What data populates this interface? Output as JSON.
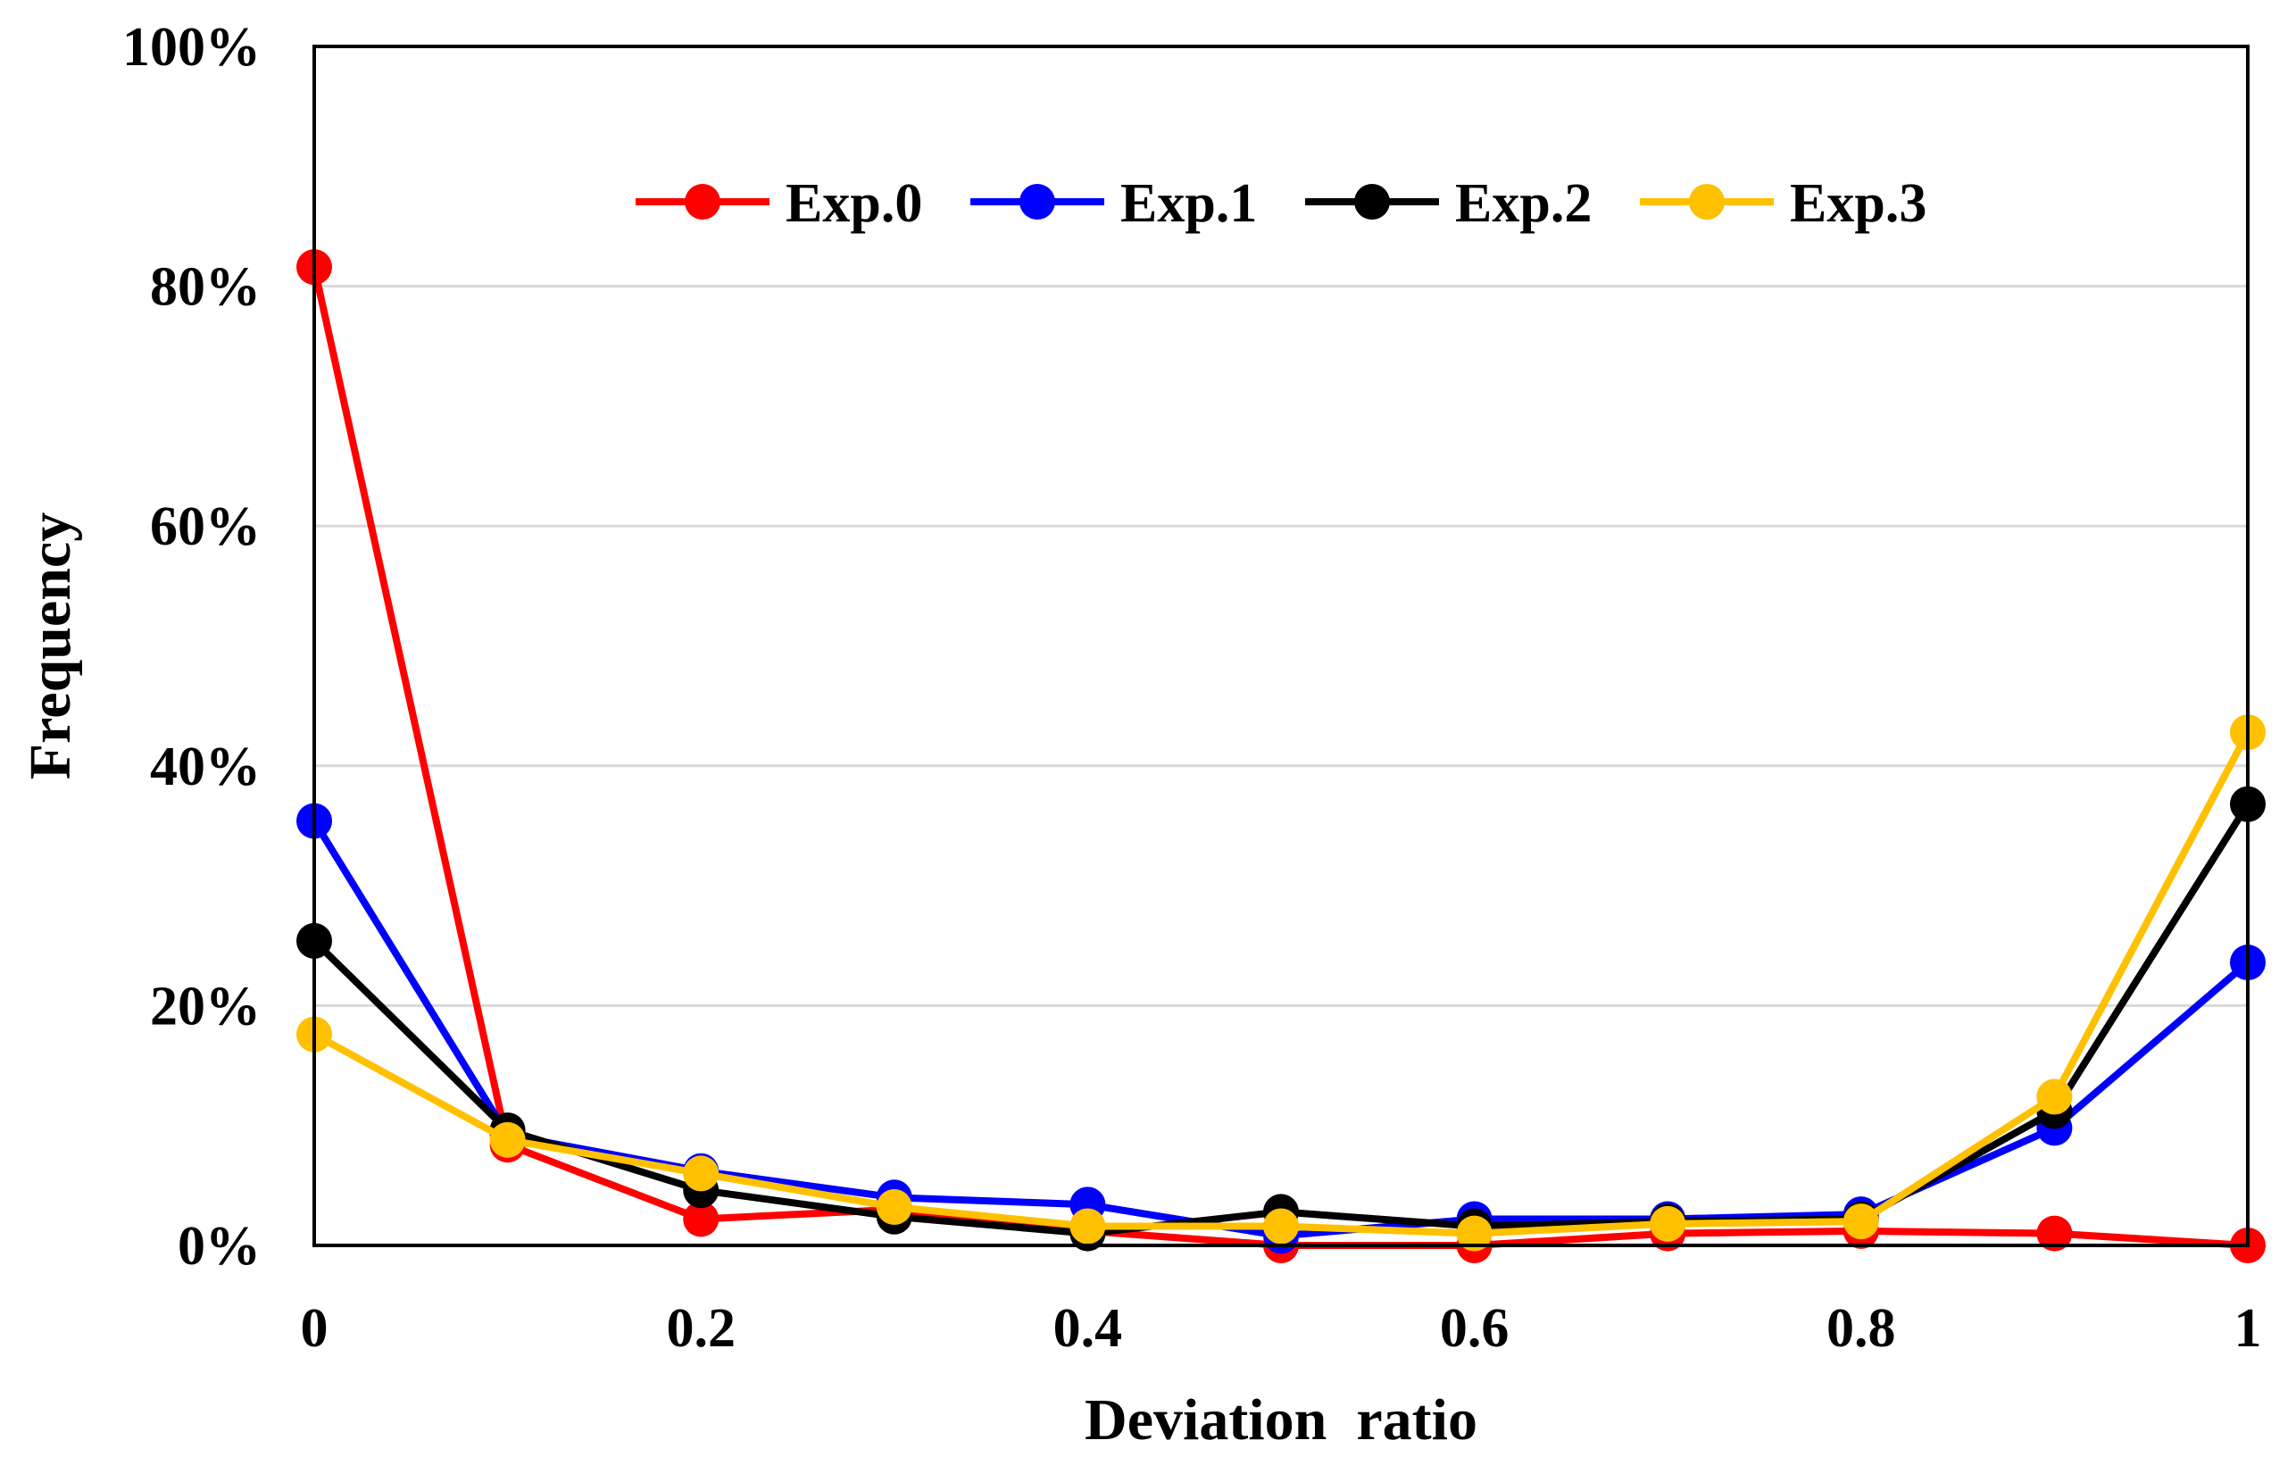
{
  "chart_data": {
    "type": "line",
    "title": "",
    "xlabel": "Deviation  ratio",
    "ylabel": "Frequency",
    "x": [
      0,
      0.1,
      0.2,
      0.3,
      0.4,
      0.5,
      0.6,
      0.7,
      0.8,
      0.9,
      1
    ],
    "xlim": [
      0,
      1
    ],
    "ylim": [
      0,
      100
    ],
    "x_ticks": [
      {
        "value": 0,
        "label": "0"
      },
      {
        "value": 0.2,
        "label": "0.2"
      },
      {
        "value": 0.4,
        "label": "0.4"
      },
      {
        "value": 0.6,
        "label": "0.6"
      },
      {
        "value": 0.8,
        "label": "0.8"
      },
      {
        "value": 1,
        "label": "1"
      }
    ],
    "y_ticks": [
      {
        "value": 0,
        "label": "0%"
      },
      {
        "value": 20,
        "label": "20%"
      },
      {
        "value": 40,
        "label": "40%"
      },
      {
        "value": 60,
        "label": "60%"
      },
      {
        "value": 80,
        "label": "80%"
      },
      {
        "value": 100,
        "label": "100%"
      }
    ],
    "grid": "horizontal",
    "legend_position": "top-center",
    "series": [
      {
        "name": "Exp.0",
        "color": "#ff0000",
        "values": [
          81.6,
          8.4,
          2.2,
          3.0,
          1.2,
          0.0,
          0.0,
          1.0,
          1.2,
          1.0,
          0.0
        ]
      },
      {
        "name": "Exp.1",
        "color": "#0000ff",
        "values": [
          35.4,
          9.2,
          6.2,
          4.0,
          3.4,
          0.8,
          2.2,
          2.2,
          2.6,
          9.8,
          23.6
        ]
      },
      {
        "name": "Exp.2",
        "color": "#000000",
        "values": [
          25.4,
          9.6,
          4.6,
          2.4,
          1.0,
          2.8,
          1.6,
          2.0,
          2.2,
          11.2,
          36.8
        ]
      },
      {
        "name": "Exp.3",
        "color": "#ffc000",
        "values": [
          17.6,
          8.8,
          6.0,
          3.2,
          1.6,
          1.6,
          1.0,
          1.8,
          2.0,
          12.4,
          42.8
        ]
      }
    ]
  }
}
